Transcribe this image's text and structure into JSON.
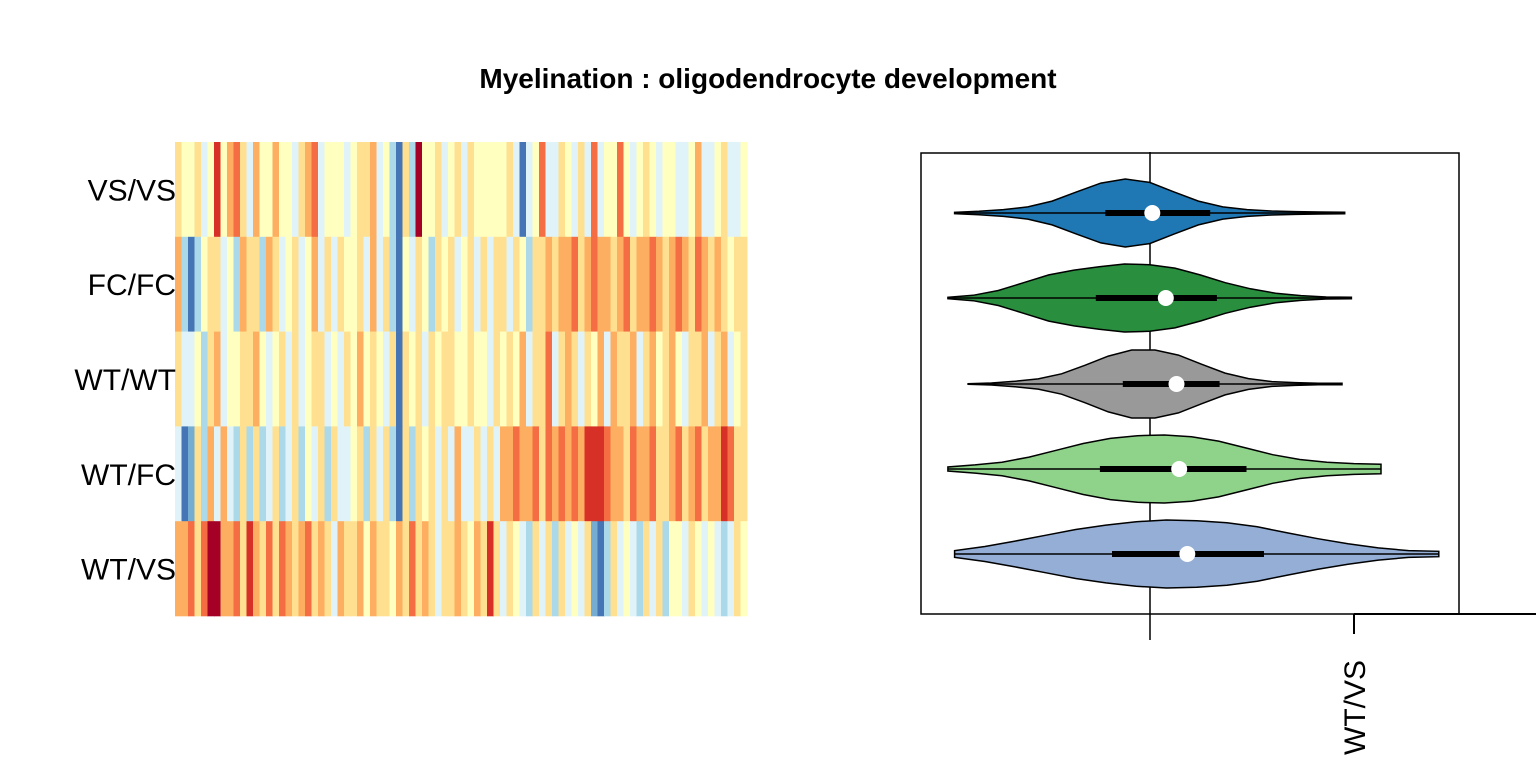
{
  "title": "Myelination : oligodendrocyte development",
  "chart_data": [
    {
      "type": "heatmap",
      "rows": [
        "VS/VS",
        "FC/FC",
        "WT/WT",
        "WT/FC",
        "WT/VS"
      ],
      "n_columns": 88,
      "palette": [
        "#313695",
        "#4575b4",
        "#74add1",
        "#abd9e9",
        "#e0f3f8",
        "#ffffbf",
        "#fee090",
        "#fdae61",
        "#f46d43",
        "#d73027",
        "#a50026"
      ],
      "values": [
        [
          0.5,
          0.1,
          -0.2,
          0.4,
          -0.5,
          0.1,
          1.6,
          -0.1,
          0.7,
          1.2,
          0.3,
          -0.3,
          0.8,
          -0.2,
          0.1,
          0.6,
          0.1,
          0.0,
          -0.4,
          0.3,
          0.6,
          1.1,
          -0.3,
          0.1,
          0.0,
          0.1,
          -0.5,
          -0.2,
          0.3,
          0.4,
          0.6,
          -0.4,
          0.0,
          -0.9,
          -1.7,
          0.4,
          -0.8,
          1.8,
          -0.2,
          0.1,
          0.3,
          -0.4,
          -0.1,
          0.4,
          -0.3,
          0.3,
          0.0,
          0.0,
          0.1,
          -0.2,
          0.0,
          0.2,
          -0.5,
          -1.5,
          -0.3,
          0.0,
          1.3,
          -0.4,
          -0.5,
          0.3,
          0.1,
          -0.3,
          0.5,
          -0.3,
          1.1,
          -0.4,
          0.1,
          0.0,
          1.3,
          -0.2,
          -0.5,
          0.1,
          0.5,
          0.1,
          -0.4,
          -0.1,
          0.0,
          -0.3,
          -0.5,
          0.0,
          0.6,
          -0.3,
          -0.5,
          0.1,
          0.4,
          -0.4,
          -0.5,
          0.0
        ],
        [
          0.6,
          -1.0,
          -1.6,
          -0.7,
          -0.1,
          0.5,
          0.3,
          -0.5,
          0.1,
          -0.8,
          0.9,
          0.5,
          0.3,
          -0.7,
          0.6,
          0.3,
          -0.3,
          0.1,
          0.3,
          -0.5,
          0.1,
          0.6,
          -0.4,
          0.2,
          -0.6,
          0.3,
          0.0,
          0.1,
          0.5,
          -0.6,
          0.6,
          -0.3,
          0.4,
          -0.7,
          -1.7,
          0.1,
          -0.3,
          0.4,
          0.1,
          -0.7,
          0.2,
          -0.2,
          0.4,
          -0.3,
          0.1,
          0.4,
          -0.6,
          0.5,
          -0.5,
          0.2,
          0.5,
          -0.4,
          0.3,
          0.1,
          -0.7,
          0.4,
          0.5,
          0.9,
          0.3,
          0.7,
          0.8,
          1.0,
          0.4,
          0.9,
          1.1,
          0.6,
          0.9,
          0.4,
          0.7,
          1.3,
          0.3,
          0.8,
          0.6,
          1.0,
          0.7,
          0.5,
          0.9,
          1.2,
          0.7,
          0.5,
          1.0,
          0.8,
          0.4,
          0.6,
          0.2,
          -0.1,
          0.3,
          0.5
        ],
        [
          0.5,
          -0.3,
          -0.6,
          0.1,
          -0.8,
          0.3,
          0.8,
          -0.5,
          0.1,
          0.0,
          0.4,
          0.2,
          0.6,
          -0.2,
          -0.4,
          0.1,
          0.3,
          -0.3,
          0.2,
          -0.6,
          0.0,
          0.2,
          0.4,
          -0.3,
          0.1,
          -0.5,
          0.2,
          0.0,
          0.6,
          -0.2,
          0.3,
          0.1,
          -0.4,
          0.2,
          -1.7,
          0.4,
          0.1,
          0.2,
          -0.3,
          0.5,
          -0.1,
          0.2,
          0.3,
          -0.2,
          0.1,
          0.4,
          0.1,
          0.0,
          -0.3,
          0.2,
          0.1,
          0.3,
          -0.1,
          0.6,
          -0.4,
          0.3,
          0.4,
          1.2,
          -0.3,
          0.5,
          0.8,
          0.2,
          -0.6,
          0.4,
          0.1,
          0.7,
          -0.4,
          0.6,
          0.5,
          0.3,
          0.9,
          -0.5,
          0.2,
          0.8,
          -0.1,
          0.4,
          0.6,
          0.1,
          -0.6,
          0.5,
          0.3,
          0.7,
          -0.4,
          0.2,
          0.6,
          -0.3,
          0.1,
          0.4
        ],
        [
          -0.3,
          -1.6,
          -1.3,
          0.2,
          -0.8,
          0.6,
          -0.3,
          0.9,
          -0.6,
          -0.8,
          0.2,
          -0.7,
          0.4,
          -1.0,
          -0.5,
          0.3,
          -0.9,
          -0.3,
          0.2,
          -0.7,
          0.1,
          -0.5,
          0.4,
          -0.8,
          0.2,
          -0.6,
          -0.3,
          0.1,
          0.5,
          -0.8,
          0.3,
          -0.4,
          0.2,
          -0.8,
          -1.7,
          0.4,
          -0.7,
          0.3,
          -0.2,
          0.5,
          -0.5,
          0.2,
          -0.3,
          0.6,
          -0.4,
          -0.6,
          0.3,
          -0.5,
          0.2,
          -0.3,
          0.7,
          0.9,
          1.2,
          0.6,
          0.8,
          1.1,
          0.4,
          1.0,
          0.7,
          1.3,
          0.8,
          1.1,
          0.6,
          1.4,
          1.4,
          1.5,
          1.2,
          0.7,
          0.9,
          0.5,
          1.1,
          0.6,
          0.8,
          1.2,
          0.5,
          0.3,
          0.9,
          1.3,
          0.4,
          0.6,
          1.0,
          0.2,
          0.7,
          0.9,
          1.6,
          1.3,
          0.5,
          0.3
        ],
        [
          0.6,
          0.8,
          1.0,
          0.4,
          1.3,
          1.8,
          2.0,
          0.6,
          0.9,
          1.2,
          0.4,
          1.4,
          0.7,
          0.5,
          1.0,
          0.3,
          1.2,
          0.6,
          0.4,
          0.9,
          1.1,
          0.3,
          0.7,
          0.5,
          -0.3,
          0.8,
          0.4,
          0.2,
          0.6,
          -0.2,
          0.9,
          0.3,
          0.5,
          0.1,
          0.7,
          0.4,
          1.0,
          0.2,
          0.6,
          0.3,
          -0.4,
          0.5,
          0.2,
          0.8,
          0.4,
          0.1,
          0.6,
          0.3,
          1.5,
          0.2,
          -0.3,
          0.4,
          0.1,
          -0.6,
          -0.9,
          0.3,
          -0.5,
          0.2,
          -0.7,
          0.4,
          -0.3,
          0.1,
          -0.5,
          0.2,
          -1.1,
          -1.5,
          -0.8,
          0.3,
          -0.6,
          0.1,
          -0.4,
          -0.9,
          0.2,
          -0.3,
          0.4,
          -0.7,
          -0.2,
          0.1,
          -0.5,
          0.3,
          -0.2,
          -0.6,
          0.1,
          -0.4,
          -0.8,
          -0.3,
          0.2,
          -0.1
        ]
      ]
    },
    {
      "type": "violin",
      "orientation": "horizontal",
      "series": [
        {
          "name": "VS/VS",
          "color": "#1f78b4",
          "median": 0.02,
          "q1": -0.33,
          "q3": 0.45,
          "min": -1.45,
          "max": 1.45,
          "density": [
            0.02,
            0.05,
            0.1,
            0.18,
            0.35,
            0.62,
            0.88,
            1.0,
            0.9,
            0.62,
            0.35,
            0.18,
            0.1,
            0.06,
            0.04,
            0.03,
            0.02
          ]
        },
        {
          "name": "FC/FC",
          "color": "#2a8e3f",
          "median": 0.12,
          "q1": -0.4,
          "q3": 0.5,
          "min": -1.5,
          "max": 1.5,
          "density": [
            0.02,
            0.08,
            0.22,
            0.45,
            0.68,
            0.82,
            0.92,
            1.0,
            0.98,
            0.88,
            0.68,
            0.45,
            0.27,
            0.14,
            0.07,
            0.03,
            0.02
          ]
        },
        {
          "name": "WT/WT",
          "color": "#999999",
          "median": 0.2,
          "q1": -0.2,
          "q3": 0.52,
          "min": -1.35,
          "max": 1.43,
          "density": [
            0.01,
            0.03,
            0.08,
            0.15,
            0.3,
            0.55,
            0.82,
            1.0,
            1.0,
            0.85,
            0.58,
            0.32,
            0.16,
            0.07,
            0.04,
            0.02,
            0.02
          ]
        },
        {
          "name": "WT/FC",
          "color": "#8fd28a",
          "median": 0.22,
          "q1": -0.37,
          "q3": 0.72,
          "min": -1.5,
          "max": 1.72,
          "density": [
            0.06,
            0.12,
            0.2,
            0.35,
            0.55,
            0.75,
            0.9,
            0.98,
            1.0,
            0.95,
            0.82,
            0.62,
            0.42,
            0.28,
            0.2,
            0.16,
            0.14
          ]
        },
        {
          "name": "WT/VS",
          "color": "#94aed6",
          "median": 0.28,
          "q1": -0.28,
          "q3": 0.85,
          "min": -1.45,
          "max": 2.15,
          "density": [
            0.1,
            0.22,
            0.38,
            0.55,
            0.72,
            0.85,
            0.95,
            1.0,
            0.98,
            0.92,
            0.8,
            0.62,
            0.45,
            0.3,
            0.18,
            0.1,
            0.08
          ]
        }
      ],
      "reference_line": 0,
      "xlim": [
        -1.7,
        2.3
      ],
      "x_tick_labels": [
        "WT/VS"
      ]
    }
  ]
}
